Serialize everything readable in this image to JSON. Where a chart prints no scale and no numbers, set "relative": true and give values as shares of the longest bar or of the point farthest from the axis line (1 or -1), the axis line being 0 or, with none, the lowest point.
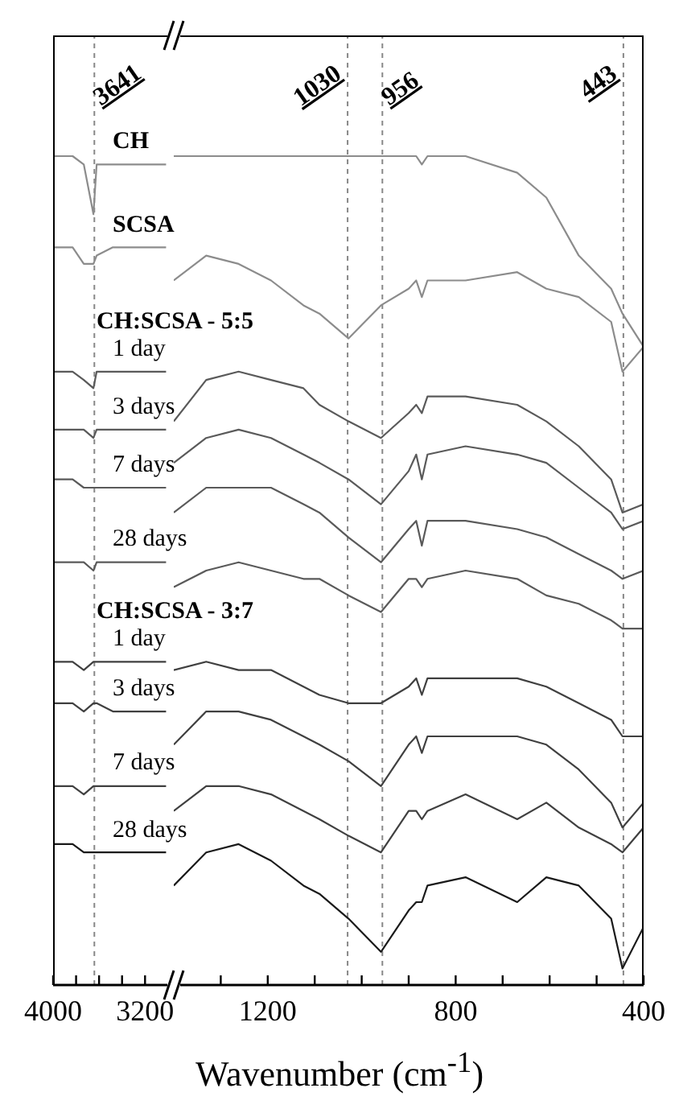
{
  "chart_data": [
    {
      "type": "line",
      "relative": true,
      "x": [
        4000,
        3830,
        3733,
        3649,
        3621,
        3480,
        3200,
        3017
      ],
      "xlim": [
        4000,
        2950
      ],
      "xticks": [
        4000,
        {
          "value": 3800,
          "label": null
        },
        {
          "value": 3600,
          "label": null
        },
        {
          "value": 3400,
          "label": null
        },
        3200
      ],
      "annotations": [
        "CH:SCSA - 5:5",
        "CH:SCSA - 3:7"
      ],
      "ref_lines": [
        {
          "axis": "x",
          "value": 3641,
          "label": "3641",
          "line_style": "dashed",
          "color": "#888888"
        }
      ],
      "series": [
        {
          "name": "CH",
          "color": "#8c8c8c",
          "values": [
            1.0,
            1.0,
            0.99,
            0.93,
            0.99,
            0.99,
            0.99,
            0.99
          ]
        },
        {
          "name": "SCSA",
          "color": "#8c8c8c",
          "values": [
            0.89,
            0.89,
            0.87,
            0.87,
            0.88,
            0.89,
            0.89,
            0.89
          ]
        },
        {
          "name": "1 day",
          "color": "#5a5a5a",
          "values": [
            0.74,
            0.74,
            0.73,
            0.72,
            0.74,
            0.74,
            0.74,
            0.74
          ]
        },
        {
          "name": "3 days",
          "color": "#5a5a5a",
          "values": [
            0.67,
            0.67,
            0.67,
            0.66,
            0.67,
            0.67,
            0.67,
            0.67
          ]
        },
        {
          "name": "7 days",
          "color": "#5a5a5a",
          "values": [
            0.61,
            0.61,
            0.6,
            0.6,
            0.6,
            0.6,
            0.6,
            0.6
          ]
        },
        {
          "name": "28 days",
          "color": "#5a5a5a",
          "values": [
            0.51,
            0.51,
            0.51,
            0.5,
            0.51,
            0.51,
            0.51,
            0.51
          ]
        },
        {
          "name": "1 day",
          "color": "#404040",
          "values": [
            0.39,
            0.39,
            0.38,
            0.39,
            0.39,
            0.39,
            0.39,
            0.39
          ]
        },
        {
          "name": "3 days",
          "color": "#404040",
          "values": [
            0.34,
            0.34,
            0.33,
            0.34,
            0.34,
            0.33,
            0.33,
            0.33
          ]
        },
        {
          "name": "7 days",
          "color": "#404040",
          "values": [
            0.24,
            0.24,
            0.23,
            0.24,
            0.24,
            0.24,
            0.24,
            0.24
          ]
        },
        {
          "name": "28 days",
          "color": "#1a1a1a",
          "values": [
            0.17,
            0.17,
            0.16,
            0.16,
            0.16,
            0.16,
            0.16,
            0.16
          ]
        }
      ]
    },
    {
      "type": "line",
      "relative": true,
      "xlabel": "Wavenumber (cm$^{-1}$)",
      "x": [
        1400,
        1331,
        1262,
        1193,
        1124,
        1090,
        1028,
        959,
        900,
        884,
        872,
        860,
        779,
        669,
        607,
        538,
        469,
        445,
        400
      ],
      "xlim": [
        1400,
        400
      ],
      "xticks": [
        {
          "value": 1300,
          "label": null
        },
        1200,
        {
          "value": 1100,
          "label": null
        },
        {
          "value": 1000,
          "label": null
        },
        {
          "value": 900,
          "label": null
        },
        800,
        {
          "value": 700,
          "label": null
        },
        {
          "value": 600,
          "label": null
        },
        {
          "value": 500,
          "label": null
        },
        400
      ],
      "ref_lines": [
        {
          "axis": "x",
          "value": 1030,
          "label": "1030",
          "line_style": "dashed",
          "color": "#888888"
        },
        {
          "axis": "x",
          "value": 956,
          "label": "956",
          "line_style": "dashed",
          "color": "#888888"
        },
        {
          "axis": "x",
          "value": 443,
          "label": "443",
          "line_style": "dashed",
          "color": "#888888"
        }
      ],
      "series": [
        {
          "color": "#8c8c8c",
          "values": [
            1.0,
            1.0,
            1.0,
            1.0,
            1.0,
            1.0,
            1.0,
            1.0,
            1.0,
            1.0,
            0.99,
            1.0,
            1.0,
            0.98,
            0.95,
            0.88,
            0.84,
            0.81,
            0.77
          ]
        },
        {
          "color": "#8c8c8c",
          "values": [
            0.85,
            0.88,
            0.87,
            0.85,
            0.82,
            0.81,
            0.78,
            0.82,
            0.84,
            0.85,
            0.83,
            0.85,
            0.85,
            0.86,
            0.84,
            0.83,
            0.8,
            0.74,
            0.77
          ]
        },
        {
          "color": "#5a5a5a",
          "values": [
            0.68,
            0.73,
            0.74,
            0.73,
            0.72,
            0.7,
            0.68,
            0.66,
            0.69,
            0.7,
            0.69,
            0.71,
            0.71,
            0.7,
            0.68,
            0.65,
            0.61,
            0.57,
            0.58
          ]
        },
        {
          "color": "#5a5a5a",
          "values": [
            0.63,
            0.66,
            0.67,
            0.66,
            0.64,
            0.63,
            0.61,
            0.58,
            0.62,
            0.64,
            0.61,
            0.64,
            0.65,
            0.64,
            0.63,
            0.6,
            0.57,
            0.55,
            0.56
          ]
        },
        {
          "color": "#5a5a5a",
          "values": [
            0.57,
            0.6,
            0.6,
            0.6,
            0.58,
            0.57,
            0.54,
            0.51,
            0.55,
            0.56,
            0.53,
            0.56,
            0.56,
            0.55,
            0.54,
            0.52,
            0.5,
            0.49,
            0.5
          ]
        },
        {
          "color": "#5a5a5a",
          "values": [
            0.48,
            0.5,
            0.51,
            0.5,
            0.49,
            0.49,
            0.47,
            0.45,
            0.49,
            0.49,
            0.48,
            0.49,
            0.5,
            0.49,
            0.47,
            0.46,
            0.44,
            0.43,
            0.43
          ]
        },
        {
          "color": "#404040",
          "values": [
            0.38,
            0.39,
            0.38,
            0.38,
            0.36,
            0.35,
            0.34,
            0.34,
            0.36,
            0.37,
            0.35,
            0.37,
            0.37,
            0.37,
            0.36,
            0.34,
            0.32,
            0.3,
            0.3
          ]
        },
        {
          "color": "#404040",
          "values": [
            0.29,
            0.33,
            0.33,
            0.32,
            0.3,
            0.29,
            0.27,
            0.24,
            0.29,
            0.3,
            0.28,
            0.3,
            0.3,
            0.3,
            0.29,
            0.26,
            0.22,
            0.19,
            0.22
          ]
        },
        {
          "color": "#404040",
          "values": [
            0.21,
            0.24,
            0.24,
            0.23,
            0.21,
            0.2,
            0.18,
            0.16,
            0.21,
            0.21,
            0.2,
            0.21,
            0.23,
            0.2,
            0.22,
            0.19,
            0.17,
            0.16,
            0.19
          ]
        },
        {
          "color": "#1a1a1a",
          "values": [
            0.12,
            0.16,
            0.17,
            0.15,
            0.12,
            0.11,
            0.08,
            0.04,
            0.09,
            0.1,
            0.1,
            0.12,
            0.13,
            0.1,
            0.13,
            0.12,
            0.08,
            0.02,
            0.07
          ]
        }
      ]
    }
  ]
}
